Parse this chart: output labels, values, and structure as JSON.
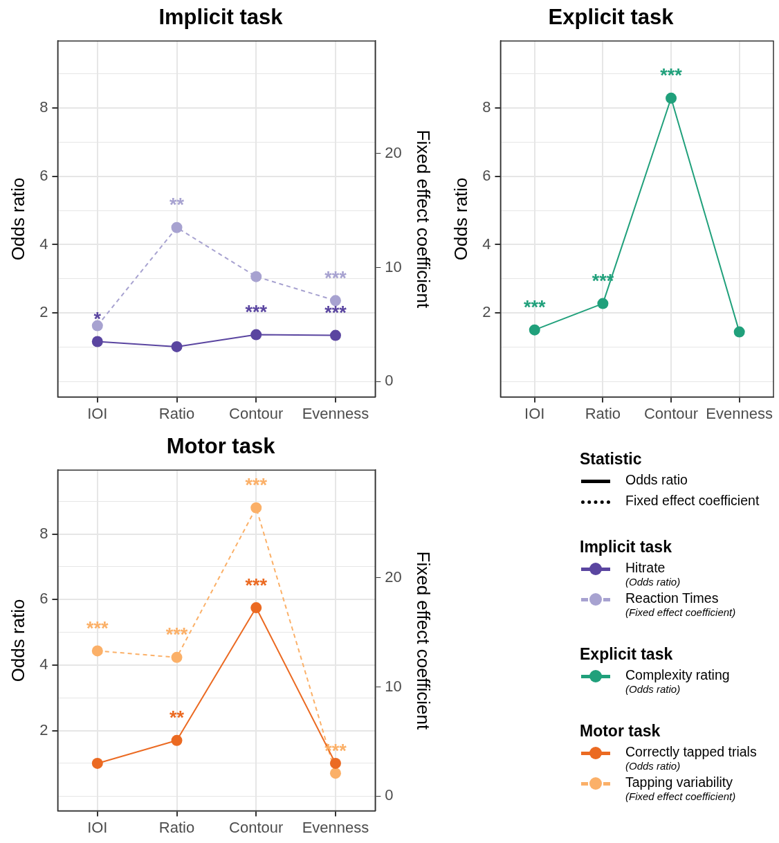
{
  "chart_data": [
    {
      "type": "line",
      "title": "Implicit task",
      "legend_title": "Implicit task",
      "ylabel": "Odds ratio",
      "y2label": "Fixed effect coefficient",
      "categories": [
        "IOI",
        "Ratio",
        "Contour",
        "Evenness"
      ],
      "series": [
        {
          "name": "Hitrate\n(Odds ratio)",
          "color": "#5a45a0",
          "values": [
            1.17,
            1.02,
            1.37,
            1.35
          ],
          "line_style": "solid",
          "value_labels": [
            "*",
            null,
            "***",
            "***"
          ]
        },
        {
          "name": "Reaction Times\n(Fixed effect coefficient)",
          "color": "#a7a2d0",
          "values": [
            4.9,
            13.5,
            9.2,
            7.1
          ],
          "axis": "y2",
          "line_style": "dashed",
          "value_labels": [
            null,
            "**",
            null,
            "***"
          ]
        }
      ],
      "ylim": [
        -0.45,
        9.95
      ],
      "yticks": [
        {
          "value": 0,
          "label": null
        },
        {
          "value": 1,
          "label": null
        },
        2,
        {
          "value": 3,
          "label": null
        },
        4,
        {
          "value": 5,
          "label": null
        },
        6,
        {
          "value": 7,
          "label": null
        },
        8,
        {
          "value": 9,
          "label": null
        }
      ],
      "y2lim": [
        -1.35,
        29.85
      ],
      "y2ticks": [
        0,
        10,
        20
      ],
      "grid": true,
      "marker": "circle",
      "legend": "right"
    },
    {
      "type": "line",
      "title": "Explicit task",
      "legend_title": "Explicit task",
      "ylabel": "Odds ratio",
      "categories": [
        "IOI",
        "Ratio",
        "Contour",
        "Evenness"
      ],
      "series": [
        {
          "name": "Complexity rating\n(Odds ratio)",
          "color": "#20a07b",
          "values": [
            1.51,
            2.28,
            8.28,
            1.45
          ],
          "line_style": "solid",
          "value_labels": [
            "***",
            "***",
            "***",
            null
          ]
        }
      ],
      "ylim": [
        -0.45,
        9.95
      ],
      "yticks": [
        {
          "value": 0,
          "label": null
        },
        {
          "value": 1,
          "label": null
        },
        2,
        {
          "value": 3,
          "label": null
        },
        4,
        {
          "value": 5,
          "label": null
        },
        6,
        {
          "value": 7,
          "label": null
        },
        8,
        {
          "value": 9,
          "label": null
        }
      ],
      "grid": true,
      "marker": "circle",
      "legend": "right"
    },
    {
      "type": "line",
      "title": "Motor task",
      "legend_title": "Motor task",
      "ylabel": "Odds ratio",
      "y2label": "Fixed effect coefficient",
      "categories": [
        "IOI",
        "Ratio",
        "Contour",
        "Evenness"
      ],
      "series": [
        {
          "name": "Correctly tapped trials\n(Odds ratio)",
          "color": "#eb6a22",
          "values": [
            1.0,
            1.7,
            5.75,
            1.0
          ],
          "line_style": "solid",
          "value_labels": [
            null,
            "**",
            "***",
            null
          ]
        },
        {
          "name": "Tapping variability\n(Fixed effect coefficient)",
          "color": "#fbb068",
          "values": [
            13.3,
            12.7,
            26.4,
            2.1
          ],
          "axis": "y2",
          "line_style": "dashed",
          "value_labels": [
            "***",
            "***",
            "***",
            "***"
          ]
        }
      ],
      "ylim": [
        -0.45,
        9.95
      ],
      "yticks": [
        {
          "value": 0,
          "label": null
        },
        {
          "value": 1,
          "label": null
        },
        2,
        {
          "value": 3,
          "label": null
        },
        4,
        {
          "value": 5,
          "label": null
        },
        6,
        {
          "value": 7,
          "label": null
        },
        8,
        {
          "value": 9,
          "label": null
        }
      ],
      "y2lim": [
        -1.35,
        29.85
      ],
      "y2ticks": [
        0,
        10,
        20
      ],
      "grid": true,
      "marker": "circle",
      "legend": "right"
    },
    {
      "type": "other",
      "legend_title": "Statistic",
      "legend": "right",
      "series": [
        {
          "name": "Odds ratio",
          "color": "#000000",
          "line_style": "solid"
        },
        {
          "name": "Fixed effect coefficient",
          "color": "#000000",
          "line_style": "dotted"
        }
      ]
    }
  ]
}
